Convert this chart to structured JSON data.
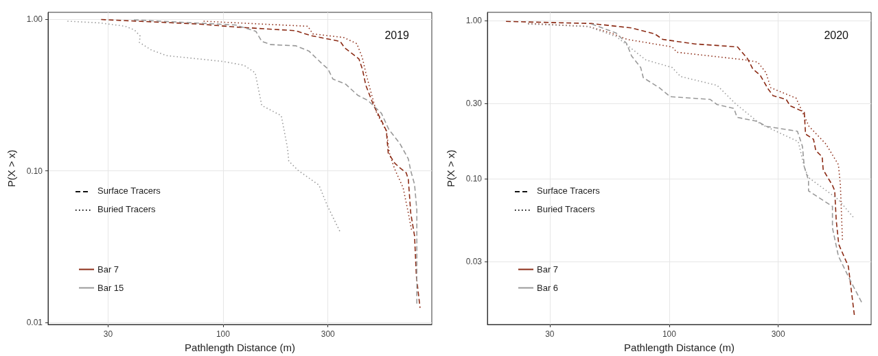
{
  "chart_data": [
    {
      "type": "line",
      "title": "2019",
      "xlabel": "Pathlength Distance (m)",
      "ylabel": "P(X > x)",
      "log": "xy",
      "grid": true,
      "legend": "bottom left",
      "marker": "none",
      "xlim": [
        16,
        890
      ],
      "xticks": [
        30,
        100,
        300
      ],
      "ylim": [
        0.0097,
        1.11
      ],
      "yticks": [
        {
          "value": 1,
          "label": "1.00"
        },
        {
          "value": 0.1,
          "label": "0.10"
        },
        {
          "value": 0.01,
          "label": "0.01"
        }
      ],
      "annotations": [
        "Surface Tracers",
        "Buried Tracers"
      ],
      "series": [
        {
          "name": "Bar 7",
          "color": "#8b2a14",
          "line_style": "dashed",
          "x": [
            27.9,
            77,
            114,
            214,
            250,
            341,
            357,
            415,
            430,
            446,
            484,
            525,
            553,
            564,
            605,
            636,
            681,
            696,
            714,
            743,
            757,
            787
          ],
          "values": [
            0.995,
            0.93,
            0.888,
            0.84,
            0.78,
            0.714,
            0.648,
            0.547,
            0.47,
            0.367,
            0.27,
            0.215,
            0.184,
            0.131,
            0.112,
            0.105,
            0.097,
            0.088,
            0.0527,
            0.0372,
            0.0203,
            0.0125
          ]
        },
        {
          "color": "#8b2a14",
          "line_style": "dotted",
          "x": [
            81.6,
            243,
            256,
            354,
            406,
            430,
            446,
            465,
            500,
            553,
            571,
            603,
            659,
            696,
            723
          ],
          "values": [
            0.97,
            0.898,
            0.8,
            0.757,
            0.69,
            0.557,
            0.443,
            0.352,
            0.24,
            0.184,
            0.131,
            0.103,
            0.0775,
            0.0527,
            0.0395
          ]
        },
        {
          "name": "Bar 15",
          "color": "#999999",
          "line_style": "dashed",
          "x": [
            39.3,
            114,
            141,
            150,
            165,
            214,
            246,
            283,
            300,
            316,
            361,
            410,
            456,
            525,
            567,
            636,
            696,
            714,
            743,
            761,
            761
          ],
          "values": [
            0.99,
            0.916,
            0.832,
            0.714,
            0.68,
            0.668,
            0.616,
            0.506,
            0.47,
            0.403,
            0.373,
            0.315,
            0.291,
            0.24,
            0.188,
            0.152,
            0.12,
            0.1,
            0.0815,
            0.055,
            0.0133
          ]
        },
        {
          "color": "#999999",
          "line_style": "dotted",
          "x": [
            19.6,
            27.6,
            36,
            39.6,
            42,
            41.6,
            47.3,
            55.5,
            99.4,
            124.6,
            140,
            150,
            184,
            196.5,
            199,
            219,
            273,
            298,
            341
          ],
          "values": [
            0.97,
            0.945,
            0.898,
            0.848,
            0.773,
            0.704,
            0.625,
            0.575,
            0.527,
            0.497,
            0.443,
            0.27,
            0.231,
            0.141,
            0.116,
            0.101,
            0.0805,
            0.059,
            0.0395
          ]
        }
      ]
    },
    {
      "type": "line",
      "title": "2020",
      "xlabel": "Pathlength Distance (m)",
      "ylabel": "P(X > x)",
      "log": "xy",
      "grid": true,
      "legend": "bottom left",
      "marker": "none",
      "xlim": [
        16,
        765
      ],
      "xticks": [
        30,
        100,
        300
      ],
      "ylim": [
        0.012,
        1.13
      ],
      "yticks": [
        {
          "value": 1,
          "label": "1.00"
        },
        {
          "value": 0.3,
          "label": "0.30"
        },
        {
          "value": 0.1,
          "label": "0.10"
        },
        {
          "value": 0.03,
          "label": "0.03"
        }
      ],
      "annotations": [
        "Surface Tracers",
        "Buried Tracers"
      ],
      "series": [
        {
          "name": "Bar 7",
          "color": "#8b2a14",
          "line_style": "dashed",
          "x": [
            19.3,
            45.7,
            68.4,
            86.4,
            93.6,
            129.6,
            199,
            220,
            232,
            250,
            271,
            284.6,
            325,
            338,
            390,
            395,
            428,
            438,
            467,
            472,
            518,
            530,
            538,
            552,
            608,
            647
          ],
          "values": [
            0.99,
            0.96,
            0.9,
            0.826,
            0.762,
            0.713,
            0.683,
            0.576,
            0.496,
            0.452,
            0.37,
            0.336,
            0.318,
            0.29,
            0.264,
            0.192,
            0.178,
            0.151,
            0.138,
            0.114,
            0.091,
            0.0843,
            0.055,
            0.0385,
            0.028,
            0.0135
          ]
        },
        {
          "color": "#8b2a14",
          "line_style": "dotted",
          "x": [
            24.1,
            44.2,
            55.5,
            65.4,
            103,
            108,
            216,
            244,
            265,
            278,
            359,
            383,
            409,
            485,
            550,
            561,
            573
          ],
          "values": [
            0.96,
            0.92,
            0.836,
            0.762,
            0.683,
            0.632,
            0.565,
            0.547,
            0.47,
            0.377,
            0.324,
            0.264,
            0.215,
            0.166,
            0.123,
            0.092,
            0.0413
          ]
        },
        {
          "name": "Bar 6",
          "color": "#999999",
          "line_style": "dashed",
          "x": [
            45.7,
            58.6,
            65,
            68.4,
            75,
            77,
            90.5,
            101,
            151,
            162,
            192,
            198,
            243,
            265,
            364,
            383,
            390,
            407,
            407,
            518,
            518,
            550,
            618,
            698
          ],
          "values": [
            0.953,
            0.836,
            0.72,
            0.599,
            0.506,
            0.436,
            0.377,
            0.331,
            0.318,
            0.295,
            0.279,
            0.245,
            0.231,
            0.215,
            0.2,
            0.16,
            0.119,
            0.098,
            0.084,
            0.067,
            0.049,
            0.0325,
            0.023,
            0.0164
          ]
        },
        {
          "color": "#999999",
          "line_style": "dotted",
          "x": [
            24.1,
            44.2,
            58.6,
            79,
            103,
            112,
            162,
            194.4,
            250,
            367,
            390,
            407,
            550,
            647
          ],
          "values": [
            0.953,
            0.918,
            0.794,
            0.565,
            0.506,
            0.444,
            0.39,
            0.3,
            0.223,
            0.172,
            0.119,
            0.102,
            0.074,
            0.056
          ]
        }
      ]
    }
  ]
}
